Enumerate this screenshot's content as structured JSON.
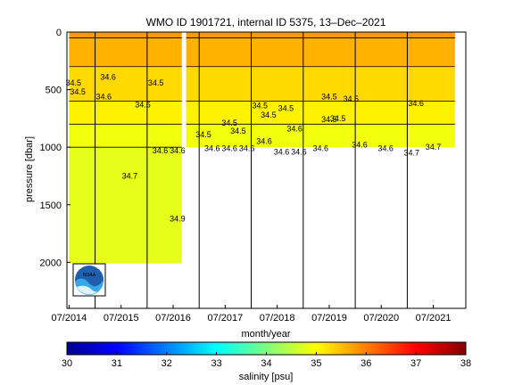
{
  "chart_data": {
    "type": "heatmap",
    "title": "WMO ID 1901721, internal ID 5375, 13–Dec–2021",
    "xlabel": "month/year",
    "ylabel": "pressure [dbar]",
    "x_ticks": [
      "07/2014",
      "07/2015",
      "07/2016",
      "07/2017",
      "07/2018",
      "07/2019",
      "07/2020",
      "07/2021"
    ],
    "x_range": [
      "2014-07",
      "2022-02"
    ],
    "y_ticks": [
      0,
      500,
      1000,
      1500,
      2000
    ],
    "y_range": [
      0,
      2400
    ],
    "y_reversed": true,
    "colorbar": {
      "label": "salinity [psu]",
      "ticks": [
        30,
        31,
        32,
        33,
        34,
        35,
        36,
        37,
        38
      ],
      "range": [
        30,
        38
      ],
      "colormap": "jet"
    },
    "profile_depth": [
      {
        "x": "2014-07",
        "max_pressure": 2010
      },
      {
        "x": "2016-09",
        "max_pressure": 2010
      },
      {
        "x": "2016-10",
        "max_pressure": 1000
      },
      {
        "x": "2021-12",
        "max_pressure": 1000
      }
    ],
    "salinity_layers": [
      {
        "pressure_range": [
          0,
          50
        ],
        "salinity": 35.8
      },
      {
        "pressure_range": [
          50,
          300
        ],
        "salinity": 35.6
      },
      {
        "pressure_range": [
          300,
          600
        ],
        "salinity": 35.3
      },
      {
        "pressure_range": [
          600,
          800
        ],
        "salinity": 35.1
      },
      {
        "pressure_range": [
          800,
          1000
        ],
        "salinity": 34.9
      },
      {
        "pressure_range": [
          1000,
          2010
        ],
        "salinity": 34.8
      }
    ],
    "contour_labels": [
      {
        "x": "2014-08",
        "pressure": 440,
        "text": "34.5"
      },
      {
        "x": "2014-09",
        "pressure": 520,
        "text": "34.5"
      },
      {
        "x": "2015-04",
        "pressure": 390,
        "text": "34.6"
      },
      {
        "x": "2015-03",
        "pressure": 560,
        "text": "34.6"
      },
      {
        "x": "2016-03",
        "pressure": 440,
        "text": "34.5"
      },
      {
        "x": "2015-12",
        "pressure": 630,
        "text": "34.5"
      },
      {
        "x": "2016-04",
        "pressure": 1030,
        "text": "34.6"
      },
      {
        "x": "2016-08",
        "pressure": 1030,
        "text": "34.6"
      },
      {
        "x": "2015-09",
        "pressure": 1250,
        "text": "34.7"
      },
      {
        "x": "2016-08",
        "pressure": 1620,
        "text": "34.9"
      },
      {
        "x": "2017-02",
        "pressure": 890,
        "text": "34.5"
      },
      {
        "x": "2017-08",
        "pressure": 790,
        "text": "34.5"
      },
      {
        "x": "2017-10",
        "pressure": 860,
        "text": "34.5"
      },
      {
        "x": "2017-04",
        "pressure": 1010,
        "text": "34.6"
      },
      {
        "x": "2017-08",
        "pressure": 1010,
        "text": "34.6"
      },
      {
        "x": "2017-12",
        "pressure": 1010,
        "text": "34.6"
      },
      {
        "x": "2018-04",
        "pressure": 950,
        "text": "34.6"
      },
      {
        "x": "2018-03",
        "pressure": 640,
        "text": "34.5"
      },
      {
        "x": "2018-05",
        "pressure": 720,
        "text": "34.5"
      },
      {
        "x": "2018-09",
        "pressure": 660,
        "text": "34.5"
      },
      {
        "x": "2018-11",
        "pressure": 840,
        "text": "34.6"
      },
      {
        "x": "2018-08",
        "pressure": 1040,
        "text": "34.6"
      },
      {
        "x": "2018-12",
        "pressure": 1040,
        "text": "34.6"
      },
      {
        "x": "2019-05",
        "pressure": 1010,
        "text": "34.6"
      },
      {
        "x": "2019-07",
        "pressure": 560,
        "text": "34.5"
      },
      {
        "x": "2019-07",
        "pressure": 760,
        "text": "34.5"
      },
      {
        "x": "2019-12",
        "pressure": 580,
        "text": "34.5"
      },
      {
        "x": "2019-09",
        "pressure": 750,
        "text": "34.5"
      },
      {
        "x": "2020-02",
        "pressure": 980,
        "text": "34.6"
      },
      {
        "x": "2020-08",
        "pressure": 1010,
        "text": "34.6"
      },
      {
        "x": "2021-03",
        "pressure": 620,
        "text": "34.6"
      },
      {
        "x": "2021-02",
        "pressure": 1050,
        "text": "34.7"
      },
      {
        "x": "2021-07",
        "pressure": 1000,
        "text": "34.7"
      }
    ],
    "vertical_lines": [
      "2015-01",
      "2016-01",
      "2017-01",
      "2018-01",
      "2019-01",
      "2020-01",
      "2021-01"
    ],
    "legend": "none",
    "grid": false,
    "logo_label": "NOAA"
  }
}
